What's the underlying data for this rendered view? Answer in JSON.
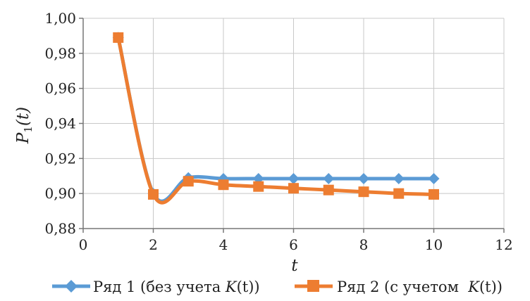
{
  "chart_data": {
    "type": "line",
    "title": "",
    "xlabel": "t",
    "ylabel": "P1(t)",
    "ylabel_main": "P",
    "ylabel_sub": "1",
    "ylabel_tail": "(t)",
    "xlim": [
      0,
      12
    ],
    "ylim": [
      0.88,
      1.0
    ],
    "xticks": [
      0,
      2,
      4,
      6,
      8,
      10,
      12
    ],
    "xtick_labels": [
      "0",
      "2",
      "4",
      "6",
      "8",
      "10",
      "12"
    ],
    "yticks": [
      0.88,
      0.9,
      0.92,
      0.94,
      0.96,
      0.98,
      1.0
    ],
    "ytick_labels": [
      "0,88",
      "0,90",
      "0,92",
      "0,94",
      "0,96",
      "0,98",
      "1,00"
    ],
    "grid": true,
    "legend_position": "bottom",
    "series": [
      {
        "name": "Ряд 1 (без учета K(t))",
        "legend_prefix": "Ряд 1 (без учета ",
        "legend_k": "K",
        "legend_suffix": "(t))",
        "color": "#5b9bd5",
        "marker": "diamond",
        "x": [
          1,
          2,
          3,
          4,
          5,
          6,
          7,
          8,
          9,
          10
        ],
        "y": [
          0.989,
          0.9,
          0.909,
          0.9085,
          0.9085,
          0.9085,
          0.9085,
          0.9085,
          0.9085,
          0.9085
        ]
      },
      {
        "name": "Ряд 2 (с учетом K(t))",
        "legend_prefix": "Ряд 2 (с учетом  ",
        "legend_k": "K",
        "legend_suffix": "(t))",
        "color": "#ed7d31",
        "marker": "square",
        "x": [
          1,
          2,
          3,
          4,
          5,
          6,
          7,
          8,
          9,
          10
        ],
        "y": [
          0.989,
          0.8995,
          0.907,
          0.905,
          0.904,
          0.903,
          0.902,
          0.901,
          0.9,
          0.8995
        ]
      }
    ]
  }
}
